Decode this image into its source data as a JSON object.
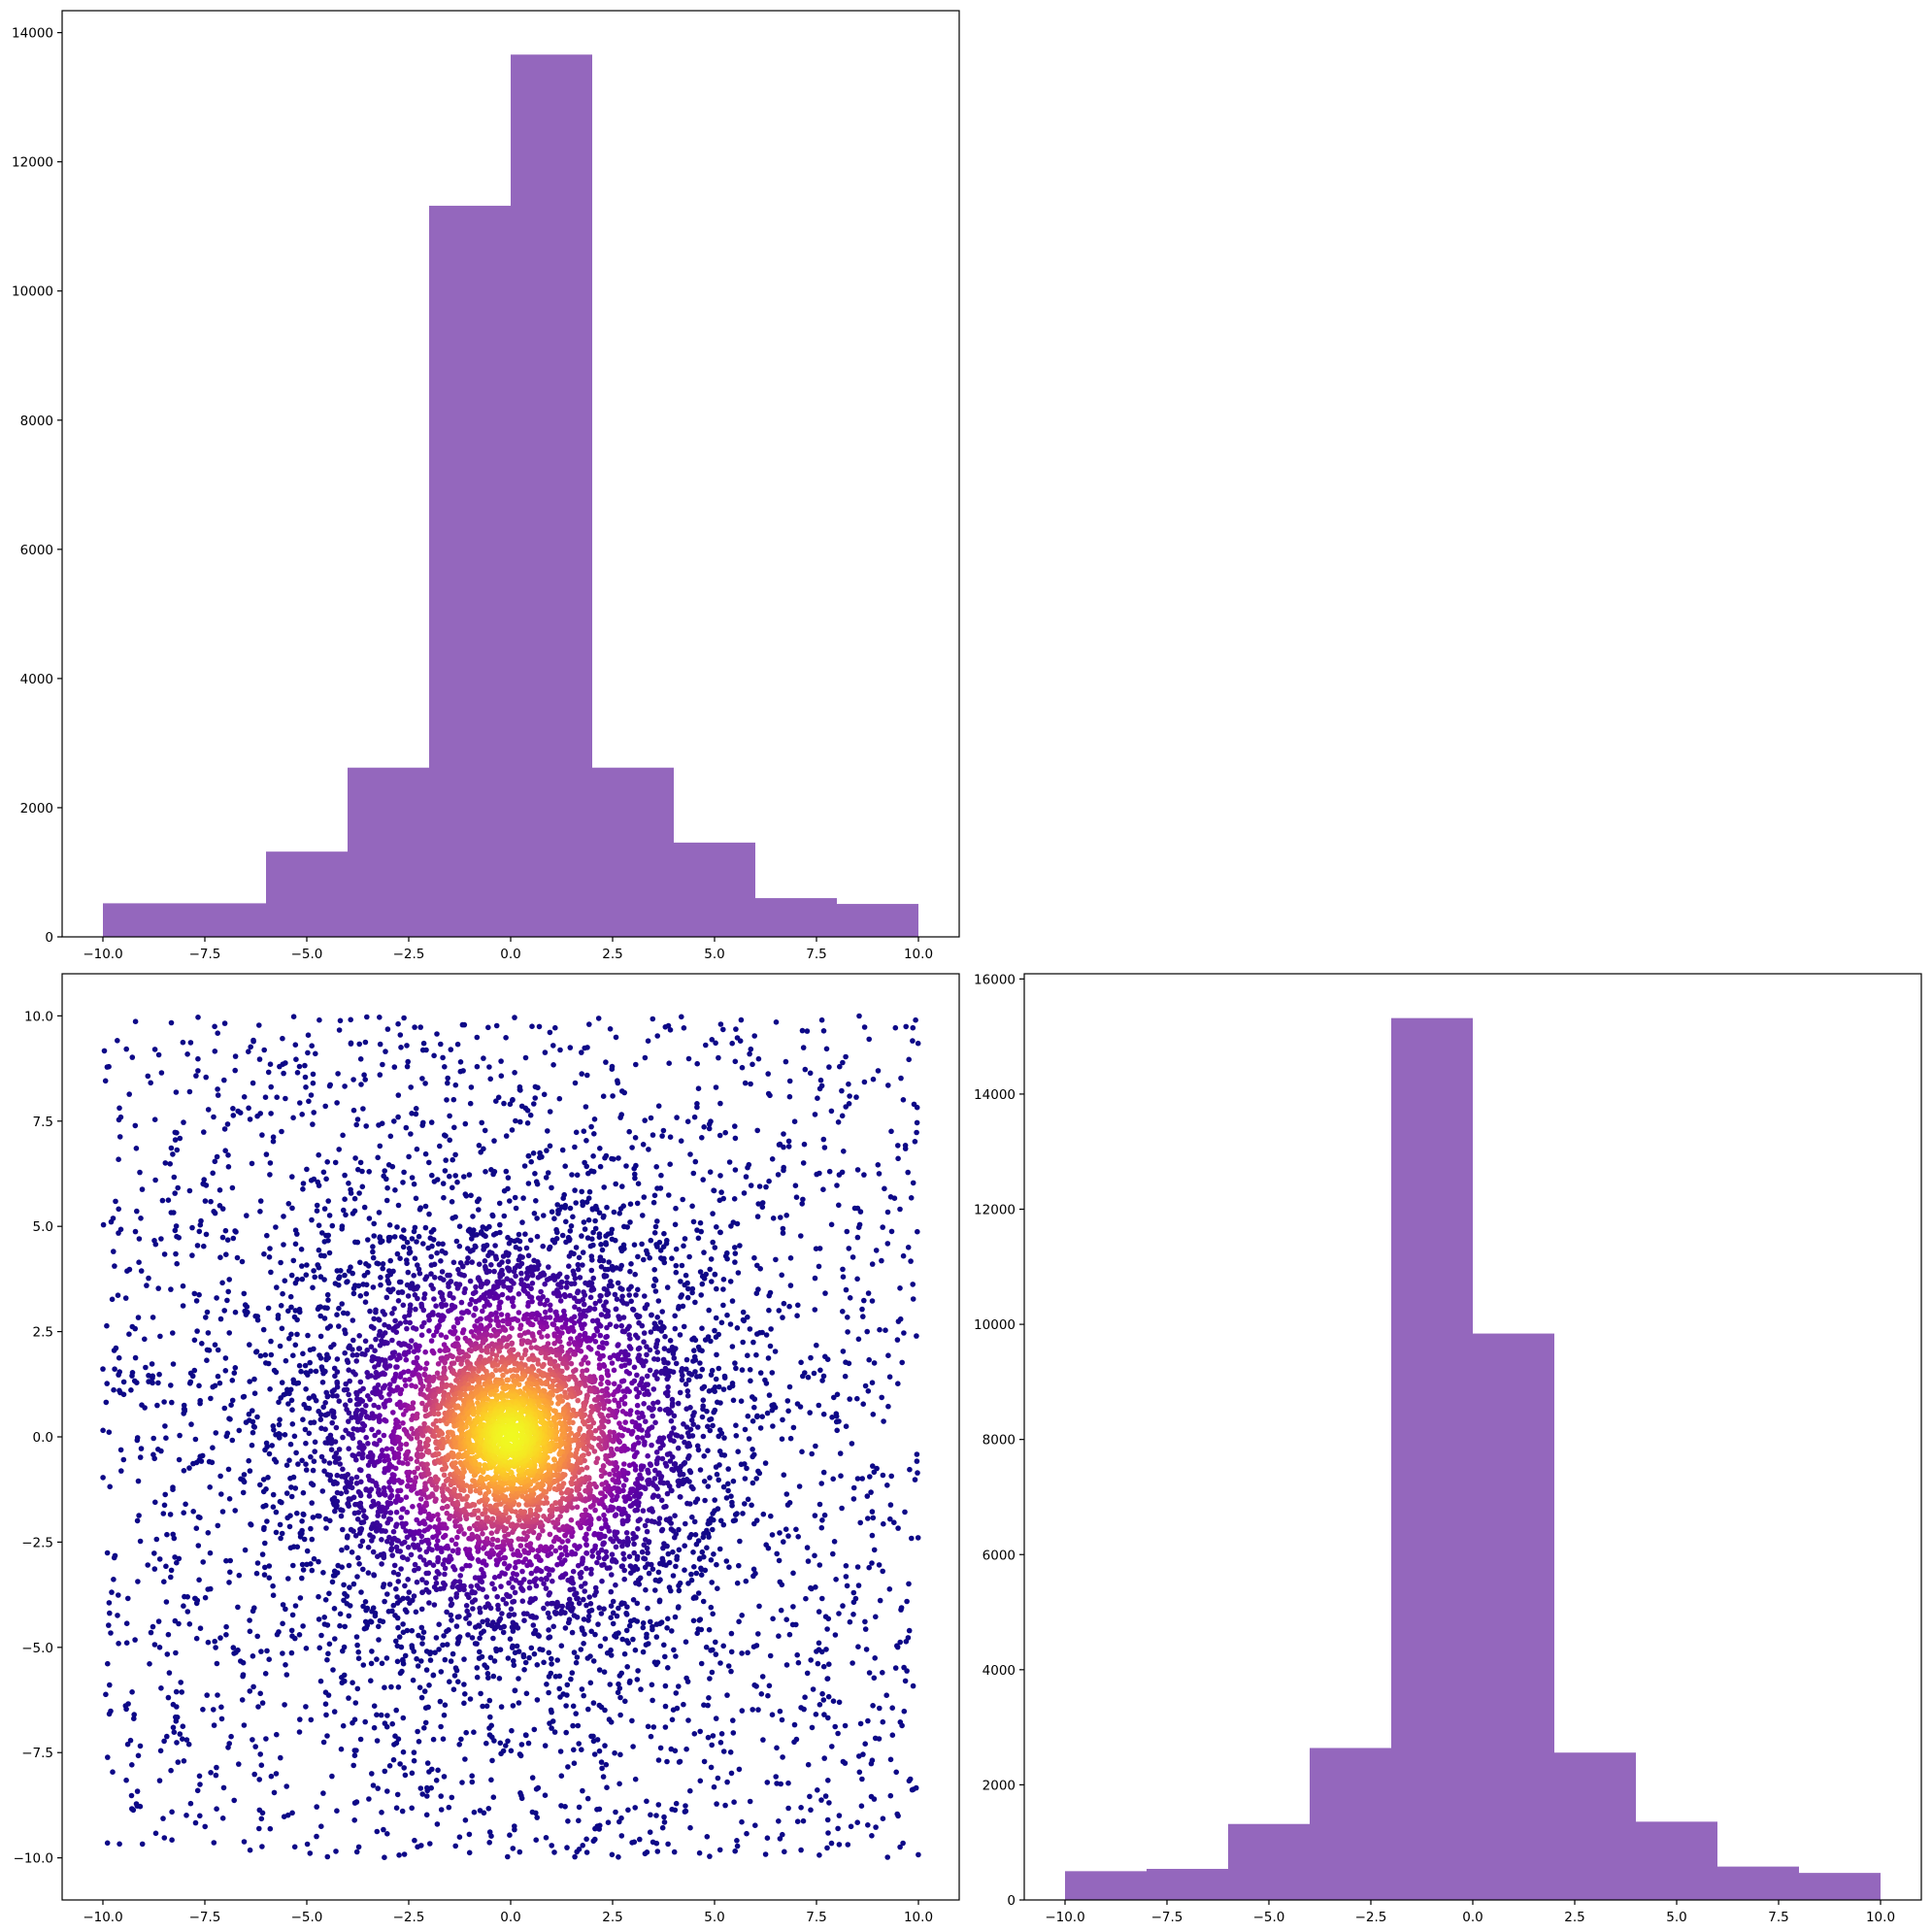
{
  "chart_data": [
    {
      "id": "top-left",
      "type": "bar",
      "subtype": "histogram",
      "color": "#9467bd",
      "bin_edges": [
        -10,
        -6,
        -4,
        -2,
        0,
        2,
        4,
        6,
        8,
        10
      ],
      "values": [
        520,
        1320,
        2620,
        11320,
        13660,
        2620,
        1460,
        600,
        510
      ],
      "bins": [
        {
          "x0": -10,
          "x1": -6,
          "value": 520
        },
        {
          "x0": -6,
          "x1": -4,
          "value": 1320
        },
        {
          "x0": -4,
          "x1": -2,
          "value": 2620
        },
        {
          "x0": -2,
          "x1": 0,
          "value": 11320
        },
        {
          "x0": 0,
          "x1": 2,
          "value": 13660
        },
        {
          "x0": 2,
          "x1": 4,
          "value": 2620
        },
        {
          "x0": 4,
          "x1": 6,
          "value": 1460
        },
        {
          "x0": 6,
          "x1": 8,
          "value": 600
        },
        {
          "x0": 8,
          "x1": 10,
          "value": 510
        }
      ],
      "xlim": [
        -11,
        11
      ],
      "ylim": [
        0,
        14340
      ],
      "xticks": [
        -10,
        -7.5,
        -5,
        -2.5,
        0,
        2.5,
        5,
        7.5,
        10
      ],
      "xtick_labels": [
        "−10.0",
        "−7.5",
        "−5.0",
        "−2.5",
        "0.0",
        "2.5",
        "5.0",
        "7.5",
        "10.0"
      ],
      "yticks": [
        0,
        2000,
        4000,
        6000,
        8000,
        10000,
        12000,
        14000
      ],
      "ytick_labels": [
        "0",
        "2000",
        "4000",
        "6000",
        "8000",
        "10000",
        "12000",
        "14000"
      ],
      "title": "",
      "xlabel": "",
      "ylabel": ""
    },
    {
      "id": "bottom-left",
      "type": "scatter",
      "colormap": [
        "#0d0887",
        "#41049d",
        "#6a00a8",
        "#8f0da4",
        "#b12a90",
        "#cc4778",
        "#e16462",
        "#f2844b",
        "#fca636",
        "#fcce25",
        "#f0f921"
      ],
      "color_by": "density (bright at center)",
      "distribution": "uniform background over [-10,10]×[-10,10] plus concentrated cluster near (0,0)",
      "xlim": [
        -11,
        11
      ],
      "ylim": [
        -11,
        11
      ],
      "xticks": [
        -10,
        -7.5,
        -5,
        -2.5,
        0,
        2.5,
        5,
        7.5,
        10
      ],
      "xtick_labels": [
        "−10.0",
        "−7.5",
        "−5.0",
        "−2.5",
        "0.0",
        "2.5",
        "5.0",
        "7.5",
        "10.0"
      ],
      "yticks": [
        -10,
        -7.5,
        -5,
        -2.5,
        0,
        2.5,
        5,
        7.5,
        10
      ],
      "ytick_labels": [
        "−10.0",
        "−7.5",
        "−5.0",
        "−2.5",
        "0.0",
        "2.5",
        "5.0",
        "7.5",
        "10.0"
      ],
      "title": "",
      "xlabel": "",
      "ylabel": ""
    },
    {
      "id": "bottom-right",
      "type": "bar",
      "subtype": "histogram",
      "color": "#9467bd",
      "bin_edges": [
        -10,
        -8,
        -6,
        -4,
        -2,
        0,
        2,
        4,
        6,
        8,
        10
      ],
      "values": [
        500,
        540,
        1320,
        2640,
        15320,
        9840,
        2560,
        1360,
        580,
        470
      ],
      "bins": [
        {
          "x0": -10,
          "x1": -8,
          "value": 500
        },
        {
          "x0": -8,
          "x1": -6,
          "value": 540
        },
        {
          "x0": -6,
          "x1": -4,
          "value": 1320
        },
        {
          "x0": -4,
          "x1": -2,
          "value": 2640
        },
        {
          "x0": -2,
          "x1": 0,
          "value": 15320
        },
        {
          "x0": 0,
          "x1": 2,
          "value": 9840
        },
        {
          "x0": 2,
          "x1": 4,
          "value": 2560
        },
        {
          "x0": 4,
          "x1": 6,
          "value": 1360
        },
        {
          "x0": 6,
          "x1": 8,
          "value": 580
        },
        {
          "x0": 8,
          "x1": 10,
          "value": 470
        }
      ],
      "xlim": [
        -11,
        11
      ],
      "ylim": [
        0,
        16090
      ],
      "xticks": [
        -10,
        -7.5,
        -5,
        -2.5,
        0,
        2.5,
        5,
        7.5,
        10
      ],
      "xtick_labels": [
        "−10.0",
        "−7.5",
        "−5.0",
        "−2.5",
        "0.0",
        "2.5",
        "5.0",
        "7.5",
        "10.0"
      ],
      "yticks": [
        0,
        2000,
        4000,
        6000,
        8000,
        10000,
        12000,
        14000,
        16000
      ],
      "ytick_labels": [
        "0",
        "2000",
        "4000",
        "6000",
        "8000",
        "10000",
        "12000",
        "14000",
        "16000"
      ],
      "title": "",
      "xlabel": "",
      "ylabel": ""
    }
  ]
}
